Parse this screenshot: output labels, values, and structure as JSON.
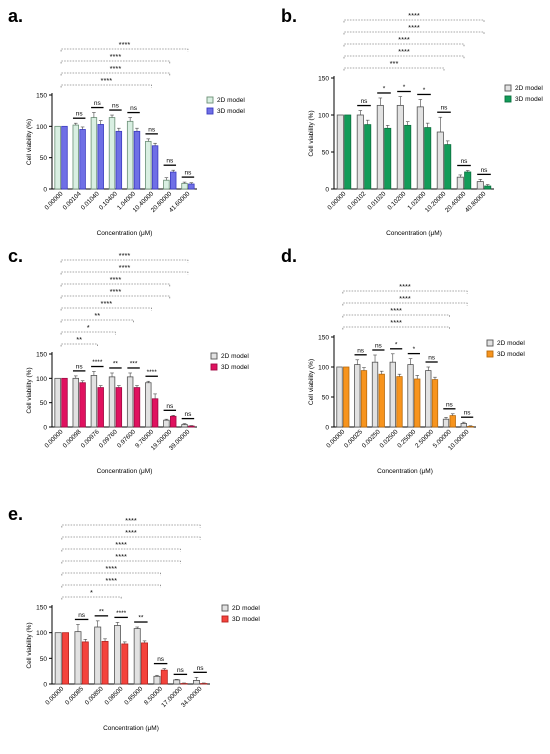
{
  "figure": {
    "panels": [
      "a.",
      "b.",
      "c.",
      "d.",
      "e."
    ]
  },
  "chart_data": [
    {
      "panel": "a.",
      "type": "bar",
      "ylabel": "Cell viability (%)",
      "xlabel": "Concentration (μM)",
      "ylim": [
        0,
        150
      ],
      "yticks": [
        0,
        50,
        100,
        150
      ],
      "categories": [
        "0.00000",
        "0.00104",
        "0.01040",
        "0.10400",
        "1.04000",
        "10.40000",
        "20.80000",
        "41.60000"
      ],
      "series": [
        {
          "name": "2D model",
          "values": [
            100,
            102,
            114,
            114,
            108,
            76,
            14,
            9
          ],
          "errors": [
            0,
            3,
            8,
            4,
            6,
            4,
            4,
            2
          ],
          "color": "#d9efe2",
          "edge": "#6b8f76"
        },
        {
          "name": "3D model",
          "values": [
            100,
            95,
            103,
            92,
            92,
            69,
            27,
            8
          ],
          "errors": [
            0,
            4,
            6,
            5,
            5,
            4,
            3,
            2
          ],
          "color": "#6f6fe6",
          "edge": "#3c3cc0"
        }
      ],
      "significance": [
        {
          "group": 1,
          "label": "ns"
        },
        {
          "group": 2,
          "label": "ns"
        },
        {
          "group": 3,
          "label": "ns"
        },
        {
          "group": 4,
          "label": "ns"
        },
        {
          "group": 5,
          "label": "ns"
        },
        {
          "group": 6,
          "label": "ns"
        },
        {
          "group": 7,
          "label": "ns"
        }
      ],
      "brackets": [
        {
          "from": 0,
          "to": 7,
          "label": "****"
        },
        {
          "from": 0,
          "to": 6,
          "label": "****"
        },
        {
          "from": 0,
          "to": 6,
          "label": "****"
        },
        {
          "from": 0,
          "to": 5,
          "label": "****"
        }
      ]
    },
    {
      "panel": "b.",
      "type": "bar",
      "ylabel": "Cell viability (%)",
      "xlabel": "Concentration (μM)",
      "ylim": [
        0,
        150
      ],
      "yticks": [
        0,
        50,
        100,
        150
      ],
      "categories": [
        "0.00000",
        "0.00102",
        "0.01020",
        "0.10200",
        "1.02000",
        "10.20000",
        "20.40000",
        "40.80000"
      ],
      "series": [
        {
          "name": "2D model",
          "values": [
            100,
            100,
            113,
            113,
            111,
            77,
            16,
            10
          ],
          "errors": [
            0,
            6,
            10,
            12,
            10,
            20,
            3,
            3
          ],
          "color": "#e2e2e2",
          "edge": "#555555"
        },
        {
          "name": "3D model",
          "values": [
            100,
            87,
            82,
            86,
            83,
            60,
            23,
            4
          ],
          "errors": [
            0,
            6,
            4,
            5,
            6,
            5,
            2,
            2
          ],
          "color": "#129c59",
          "edge": "#0b6e3d"
        }
      ],
      "significance": [
        {
          "group": 1,
          "label": "ns"
        },
        {
          "group": 2,
          "label": "*"
        },
        {
          "group": 3,
          "label": "*"
        },
        {
          "group": 4,
          "label": "*"
        },
        {
          "group": 5,
          "label": "ns"
        },
        {
          "group": 6,
          "label": "ns"
        },
        {
          "group": 7,
          "label": "ns"
        }
      ],
      "brackets": [
        {
          "from": 0,
          "to": 7,
          "label": "****"
        },
        {
          "from": 0,
          "to": 7,
          "label": "****"
        },
        {
          "from": 0,
          "to": 6,
          "label": "****"
        },
        {
          "from": 0,
          "to": 6,
          "label": "****"
        },
        {
          "from": 0,
          "to": 5,
          "label": "***"
        }
      ]
    },
    {
      "panel": "c.",
      "type": "bar",
      "ylabel": "Cell viability (%)",
      "xlabel": "Concentration (μM)",
      "ylim": [
        0,
        150
      ],
      "yticks": [
        0,
        50,
        100,
        150
      ],
      "categories": [
        "0.00000",
        "0.00098",
        "0.00976",
        "0.09760",
        "0.97600",
        "9.76000",
        "19.50000",
        "39.00000"
      ],
      "series": [
        {
          "name": "2D model",
          "values": [
            100,
            100,
            106,
            103,
            103,
            91,
            14,
            5
          ],
          "errors": [
            0,
            5,
            8,
            8,
            8,
            3,
            2,
            2
          ],
          "color": "#e2e2e2",
          "edge": "#555555"
        },
        {
          "name": "3D model",
          "values": [
            100,
            91,
            81,
            81,
            81,
            58,
            22,
            2
          ],
          "errors": [
            0,
            4,
            4,
            4,
            4,
            10,
            2,
            1
          ],
          "color": "#e0115f",
          "edge": "#a00a43"
        }
      ],
      "significance": [
        {
          "group": 1,
          "label": "ns"
        },
        {
          "group": 2,
          "label": "****"
        },
        {
          "group": 3,
          "label": "**"
        },
        {
          "group": 4,
          "label": "***"
        },
        {
          "group": 5,
          "label": "****"
        },
        {
          "group": 6,
          "label": "ns"
        },
        {
          "group": 7,
          "label": "ns"
        }
      ],
      "brackets": [
        {
          "from": 0,
          "to": 7,
          "label": "****"
        },
        {
          "from": 0,
          "to": 7,
          "label": "****"
        },
        {
          "from": 0,
          "to": 6,
          "label": "****"
        },
        {
          "from": 0,
          "to": 6,
          "label": "****"
        },
        {
          "from": 0,
          "to": 5,
          "label": "****"
        },
        {
          "from": 0,
          "to": 4,
          "label": "**"
        },
        {
          "from": 0,
          "to": 3,
          "label": "*"
        },
        {
          "from": 0,
          "to": 2,
          "label": "**"
        }
      ]
    },
    {
      "panel": "d.",
      "type": "bar",
      "ylabel": "Cell viability (%)",
      "xlabel": "Concentration (μM)",
      "ylim": [
        0,
        150
      ],
      "yticks": [
        0,
        50,
        100,
        150
      ],
      "categories": [
        "0.00000",
        "0.00025",
        "0.00250",
        "0.02500",
        "0.25000",
        "2.50000",
        "5.00000",
        "10.00000"
      ],
      "series": [
        {
          "name": "2D model",
          "values": [
            100,
            104,
            108,
            108,
            104,
            94,
            13,
            6
          ],
          "errors": [
            0,
            8,
            12,
            14,
            10,
            6,
            3,
            2
          ],
          "color": "#e2e2e2",
          "edge": "#555555"
        },
        {
          "name": "3D model",
          "values": [
            100,
            94,
            88,
            84,
            80,
            79,
            19,
            1
          ],
          "errors": [
            0,
            5,
            5,
            4,
            6,
            4,
            3,
            1
          ],
          "color": "#f7941d",
          "edge": "#b96a0c"
        }
      ],
      "significance": [
        {
          "group": 1,
          "label": "ns"
        },
        {
          "group": 2,
          "label": "ns"
        },
        {
          "group": 3,
          "label": "*"
        },
        {
          "group": 4,
          "label": "*"
        },
        {
          "group": 5,
          "label": "ns"
        },
        {
          "group": 6,
          "label": "ns"
        },
        {
          "group": 7,
          "label": "ns"
        }
      ],
      "brackets": [
        {
          "from": 0,
          "to": 7,
          "label": "****"
        },
        {
          "from": 0,
          "to": 7,
          "label": "****"
        },
        {
          "from": 0,
          "to": 6,
          "label": "****"
        },
        {
          "from": 0,
          "to": 6,
          "label": "****"
        }
      ]
    },
    {
      "panel": "e.",
      "type": "bar",
      "ylabel": "Cell viability (%)",
      "xlabel": "Concentration (μM)",
      "ylim": [
        0,
        150
      ],
      "yticks": [
        0,
        50,
        100,
        150
      ],
      "categories": [
        "0.00000",
        "0.00085",
        "0.00850",
        "0.08500",
        "0.85000",
        "8.50000",
        "17.00000",
        "34.00000"
      ],
      "series": [
        {
          "name": "2D model",
          "values": [
            100,
            102,
            111,
            114,
            108,
            15,
            8,
            7
          ],
          "errors": [
            0,
            14,
            12,
            6,
            3,
            2,
            1,
            6
          ],
          "color": "#e2e2e2",
          "edge": "#555555"
        },
        {
          "name": "3D model",
          "values": [
            100,
            82,
            83,
            78,
            80,
            27,
            1,
            1
          ],
          "errors": [
            0,
            5,
            5,
            4,
            4,
            3,
            1,
            1
          ],
          "color": "#f4433c",
          "edge": "#b62420"
        }
      ],
      "significance": [
        {
          "group": 1,
          "label": "ns"
        },
        {
          "group": 2,
          "label": "**"
        },
        {
          "group": 3,
          "label": "****"
        },
        {
          "group": 4,
          "label": "**"
        },
        {
          "group": 5,
          "label": "ns"
        },
        {
          "group": 6,
          "label": "ns"
        },
        {
          "group": 7,
          "label": "ns"
        }
      ],
      "brackets": [
        {
          "from": 0,
          "to": 7,
          "label": "****"
        },
        {
          "from": 0,
          "to": 7,
          "label": "****"
        },
        {
          "from": 0,
          "to": 6,
          "label": "****"
        },
        {
          "from": 0,
          "to": 6,
          "label": "****"
        },
        {
          "from": 0,
          "to": 5,
          "label": "****"
        },
        {
          "from": 0,
          "to": 5,
          "label": "****"
        },
        {
          "from": 0,
          "to": 3,
          "label": "*"
        }
      ]
    }
  ]
}
